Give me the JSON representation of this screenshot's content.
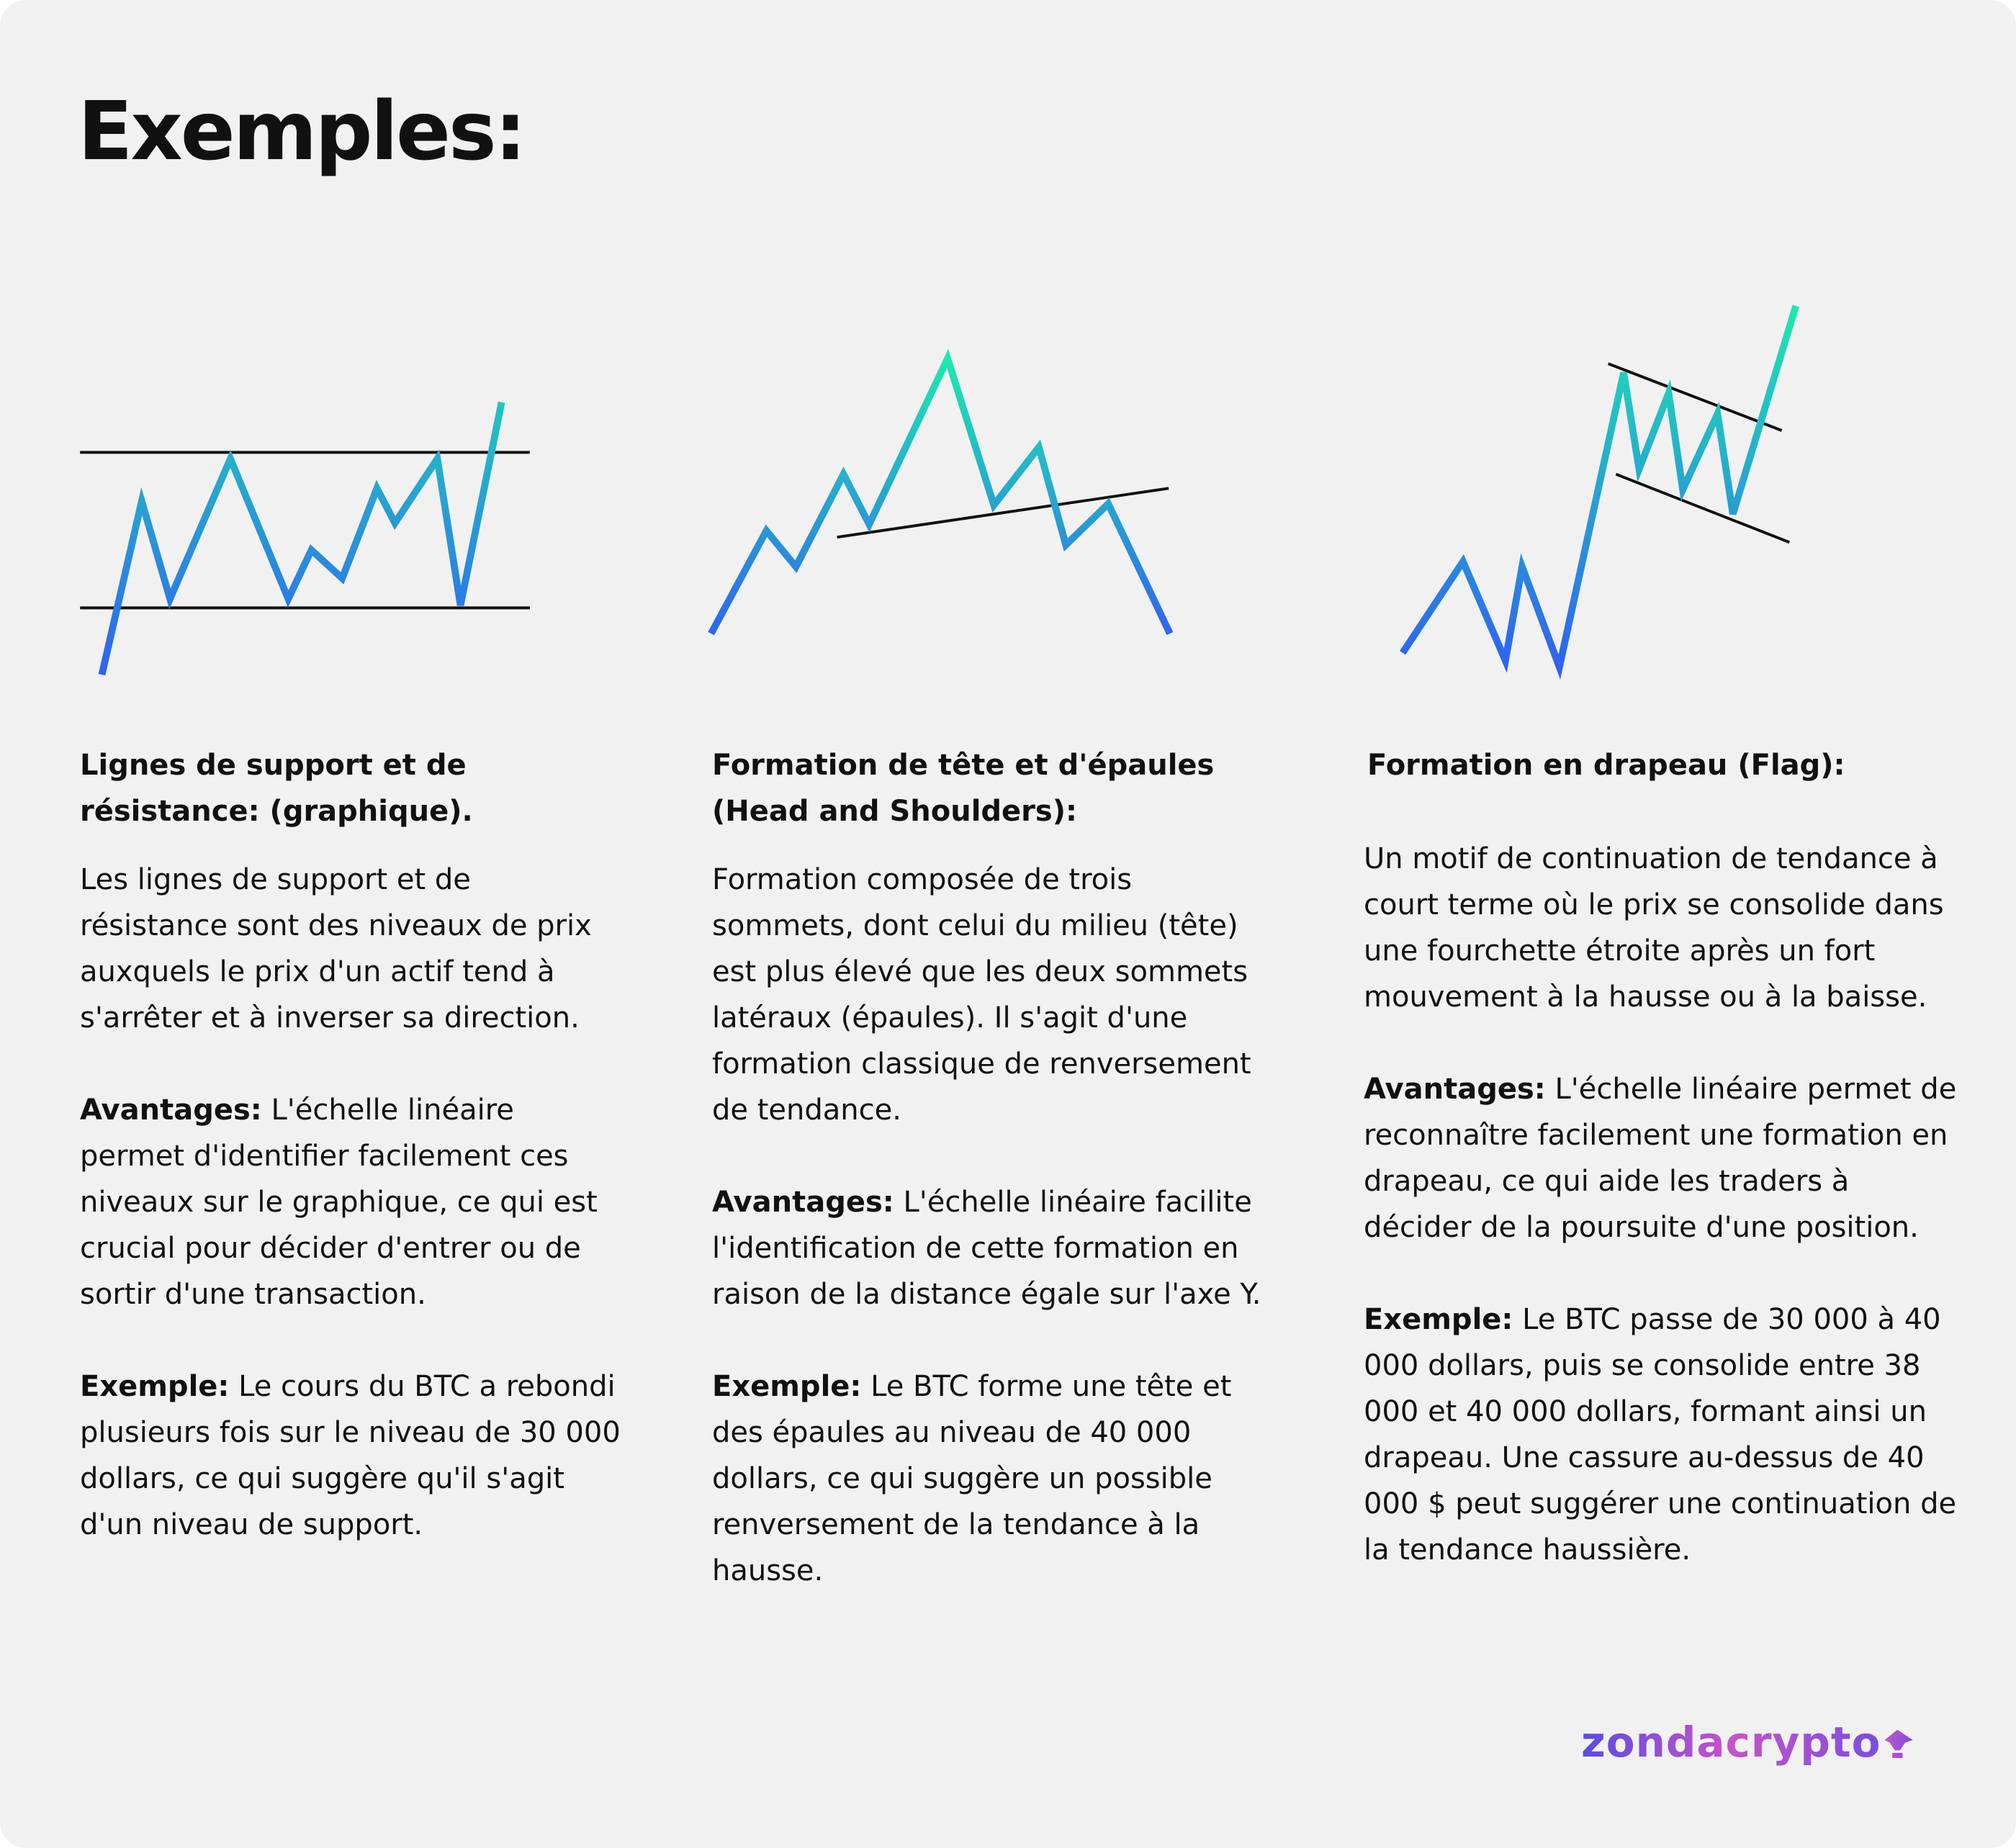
{
  "title": "Exemples:",
  "columns": [
    {
      "heading": "Lignes de support et de résistance: (graphique).",
      "description": "Les lignes de support et de résistance sont des niveaux de prix auxquels le prix d'un actif tend à s'arrêter et à inverser sa direction.",
      "advantages": {
        "label": "Avantages:",
        "text": "L'échelle linéaire permet d'identifier facilement ces niveaux sur le graphique, ce qui est crucial pour décider d'entrer ou de sortir d'une transaction."
      },
      "example": {
        "label": "Exemple:",
        "text": "Le cours du BTC a rebondi plusieurs fois sur le niveau de 30 000 dollars, ce qui suggère qu'il s'agit d'un niveau de support."
      }
    },
    {
      "heading": "Formation de tête et d'épaules (Head and Shoulders):",
      "description": "Formation composée de trois sommets, dont celui du milieu (tête) est plus élevé que les deux sommets latéraux (épaules). Il s'agit d'une formation classique de renversement de tendance.",
      "advantages": {
        "label": "Avantages:",
        "text": "L'échelle linéaire facilite l'identification de cette formation en raison de la distance égale sur l'axe Y."
      },
      "example": {
        "label": "Exemple:",
        "text": "Le BTC forme une tête et des épaules au niveau de 40 000 dollars, ce qui suggère un possible renversement de la tendance à la hausse."
      }
    },
    {
      "heading": "Formation en drapeau (Flag):",
      "description": "Un motif de continuation de tendance à court terme où le prix se consolide dans une fourchette étroite après un fort mouvement à la hausse ou à la baisse.",
      "advantages": {
        "label": "Avantages:",
        "text": "L'échelle linéaire permet de reconnaître facilement une formation en drapeau, ce qui aide les traders à décider de la poursuite d'une position."
      },
      "example": {
        "label": "Exemple:",
        "text": "Le BTC passe de 30 000 à 40 000 dollars, puis se consolide entre 38 000 et 40 000 dollars, formant ainsi un drapeau. Une cassure au-dessus de 40 000 $ peut suggérer une continuation de la tendance haussière."
      }
    }
  ],
  "logo": "zondacrypto"
}
